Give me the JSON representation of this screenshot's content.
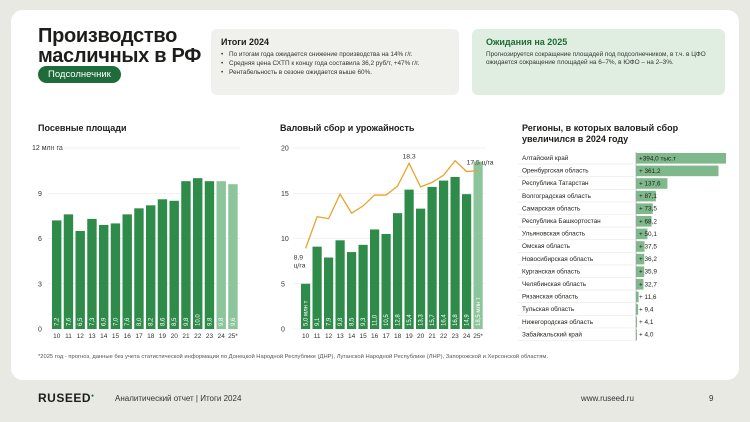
{
  "header": {
    "title": "Производство масличных в РФ",
    "tag": "Подсолнечник"
  },
  "summary_box": {
    "title": "Итоги 2024",
    "bullets": [
      "По итогам года ожидается снижение производства на 14% г/г.",
      "Средняя цена СХТП к концу года составила 36,2 руб/т, +47% г/г.",
      "Рентабельность в сезоне ожидается выше 60%."
    ]
  },
  "outlook_box": {
    "title": "Ожидания на 2025",
    "text": "Прогнозируется сокращение площадей под подсолнечником, в т.ч. в ЦФО ожидается сокращение площадей на 6–7%, в ЮФО – на 2–3%."
  },
  "chart_data": [
    {
      "type": "bar",
      "title": "Посевные площади",
      "ylabel": "12 млн га",
      "ylim": [
        0,
        12
      ],
      "yticks": [
        "0",
        "3",
        "6",
        "9"
      ],
      "categories": [
        "10",
        "11",
        "12",
        "13",
        "14",
        "15",
        "16",
        "17",
        "18",
        "19",
        "20",
        "21",
        "22",
        "23",
        "24",
        "25*"
      ],
      "values": [
        7.2,
        7.6,
        6.5,
        7.3,
        6.9,
        7.0,
        7.6,
        8.0,
        8.2,
        8.6,
        8.5,
        9.8,
        10.0,
        9.8,
        9.8,
        9.6
      ],
      "value_labels": [
        "7,2",
        "7,6",
        "6,5",
        "7,3",
        "6,9",
        "7,0",
        "7,6",
        "8,0",
        "8,2",
        "8,6",
        "8,5",
        "9,8",
        "10,0",
        "9,8",
        "9,8",
        "9,6"
      ],
      "colors": {
        "actual": "#2e8b4a",
        "forecast": "#8cc49b"
      }
    },
    {
      "type": "bar+line",
      "title": "Валовый сбор и урожайность",
      "ylim": [
        0,
        20
      ],
      "yticks": [
        "0",
        "5",
        "10",
        "15",
        "20"
      ],
      "categories": [
        "10",
        "11",
        "12",
        "13",
        "14",
        "15",
        "16",
        "17",
        "18",
        "19",
        "20",
        "21",
        "22",
        "23",
        "24",
        "25*"
      ],
      "bar_series": {
        "name": "Валовый сбор",
        "values": [
          5.0,
          9.1,
          7.9,
          9.8,
          8.5,
          9.3,
          11.0,
          10.5,
          12.8,
          15.4,
          13.3,
          15.7,
          16.4,
          16.8,
          14.9,
          18.5
        ],
        "value_labels": [
          "5,0 млн т",
          "9,1",
          "7,9",
          "9,8",
          "8,5",
          "9,3",
          "11,0",
          "10,5",
          "12,8",
          "15,4",
          "13,3",
          "15,7",
          "16,4",
          "16,8",
          "14,9",
          "18,5 млн т"
        ]
      },
      "line_series": {
        "name": "Урожайность",
        "values": [
          8.9,
          12.4,
          12.2,
          14.9,
          12.8,
          13.6,
          14.8,
          14.8,
          15.8,
          18.3,
          15.7,
          16.2,
          17.0,
          18.6,
          17.4,
          17.5
        ]
      },
      "annotations": [
        "8,9 ц/га",
        "18,3",
        "17,5 ц/га"
      ],
      "colors": {
        "actual": "#2e8b4a",
        "forecast": "#8cc49b",
        "line": "#e8a32e"
      }
    },
    {
      "type": "bar",
      "orientation": "horizontal",
      "title": "Регионы, в которых валовый сбор увеличился в 2024 году",
      "categories": [
        "Алтайский край",
        "Оренбургская область",
        "Республика Татарстан",
        "Волгоградская область",
        "Самарская область",
        "Республика Башкортостан",
        "Ульяновская область",
        "Омская область",
        "Новосибирская область",
        "Курганская область",
        "Челябинская область",
        "Рязанская область",
        "Тульская область",
        "Нижегородская область",
        "Забайкальский край"
      ],
      "values": [
        394.0,
        361.2,
        137.6,
        87.1,
        73.5,
        68.2,
        50.1,
        37.5,
        36.2,
        35.9,
        32.7,
        11.6,
        9.4,
        4.1,
        4.0
      ],
      "value_labels": [
        "+394,0 тыс.т",
        "+ 361,2",
        "+ 137,6",
        "+ 87,1",
        "+ 73,5",
        "+ 68,2",
        "+ 50,1",
        "+ 37,5",
        "+ 36,2",
        "+ 35,9",
        "+ 32,7",
        "+ 11,6",
        "+ 9,4",
        "+ 4,1",
        "+ 4,0"
      ],
      "colors": {
        "bar": "#7fb98b"
      }
    }
  ],
  "footnote": "*2025 год - прогноз, данные без учета статистической информации по Донецкой Народной Республике (ДНР), Луганской Народной Республике (ЛНР), Запорожской и Херсонской областям.",
  "footer": {
    "logo": "RUSEED",
    "report": "Аналитический отчет  |  Итоги 2024",
    "url": "www.ruseed.ru",
    "page": "9"
  }
}
